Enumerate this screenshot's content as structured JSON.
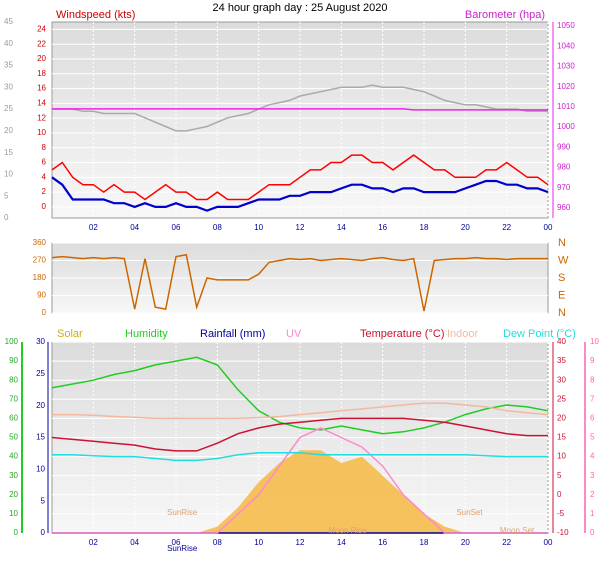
{
  "chart_data": [
    {
      "type": "line",
      "title": "24 hour graph day : 25 August 2020",
      "ylabel": "Windspeed (kts)",
      "y2label": "Barometer (hpa)",
      "xlim": [
        0,
        24
      ],
      "xticks": [
        {
          "value": 2,
          "label": "02"
        },
        {
          "value": 4,
          "label": "04"
        },
        {
          "value": 6,
          "label": "06"
        },
        {
          "value": 8,
          "label": "08"
        },
        10,
        12,
        14,
        16,
        18,
        20,
        22,
        {
          "value": 24,
          "label": "00"
        }
      ],
      "ylim": [
        -1.5,
        25
      ],
      "yticks": [
        0,
        2,
        4,
        6,
        8,
        10,
        12,
        14,
        16,
        18,
        20,
        22,
        24
      ],
      "y2lim": [
        955,
        1052
      ],
      "y2ticks": [
        960,
        970,
        980,
        990,
        1000,
        1010,
        1020,
        1030,
        1040,
        1050
      ],
      "y3lim": [
        0,
        45
      ],
      "y3ticks": [
        0,
        5,
        10,
        15,
        20,
        25,
        30,
        35,
        40,
        45
      ],
      "grid": true,
      "x": [
        0,
        0.5,
        1,
        1.5,
        2,
        2.5,
        3,
        3.5,
        4,
        4.5,
        5,
        5.5,
        6,
        6.5,
        7,
        7.5,
        8,
        8.5,
        9,
        9.5,
        10,
        10.5,
        11,
        11.5,
        12,
        12.5,
        13,
        13.5,
        14,
        14.5,
        15,
        15.5,
        16,
        16.5,
        17,
        17.5,
        18,
        18.5,
        19,
        19.5,
        20,
        20.5,
        21,
        21.5,
        22,
        22.5,
        23,
        23.5,
        24
      ],
      "series": [
        {
          "color": "#aaaaaa",
          "axis": "y3",
          "values": [
            25,
            25,
            25,
            24.5,
            24.5,
            24,
            24,
            24,
            24,
            23,
            22,
            21,
            20,
            20,
            20.5,
            21,
            22,
            23,
            23.5,
            24,
            25,
            26,
            26.5,
            27,
            28,
            28.5,
            29,
            29.5,
            30,
            30,
            30,
            30.5,
            30,
            30,
            30,
            29.5,
            29,
            28,
            27,
            26.5,
            26,
            26,
            25.5,
            25,
            25,
            25,
            24.5,
            24.5,
            24.5
          ]
        },
        {
          "color": "#ff0000",
          "axis": "y",
          "values": [
            5,
            6,
            4,
            3,
            3,
            2,
            3,
            2,
            2,
            1,
            2,
            3,
            2,
            2,
            1,
            1,
            2,
            1,
            1,
            1,
            2,
            3,
            3,
            3,
            4,
            5,
            5,
            6,
            6,
            7,
            7,
            6,
            6,
            5,
            6,
            7,
            6,
            5,
            5,
            4,
            4,
            4,
            5,
            5,
            6,
            5,
            4,
            4,
            3
          ]
        },
        {
          "color": "#0000cc",
          "axis": "y",
          "values": [
            4,
            3,
            1,
            1,
            1,
            1,
            0.5,
            0.5,
            0,
            0.5,
            0,
            0,
            0.5,
            0,
            0,
            -0.5,
            0,
            0,
            0,
            0.5,
            1,
            1,
            1,
            1.5,
            1.5,
            2,
            2,
            2,
            2.5,
            3,
            3,
            2.5,
            2.5,
            2,
            2.5,
            2.5,
            2,
            2,
            2,
            2,
            2.5,
            3,
            3.5,
            3.5,
            3,
            3,
            2.5,
            2.5,
            2
          ]
        },
        {
          "color": "#ee22ee",
          "axis": "y2",
          "values": [
            1009,
            1009,
            1009,
            1009,
            1009,
            1009,
            1009,
            1009,
            1009,
            1009,
            1009,
            1009,
            1009,
            1009,
            1009,
            1009,
            1009,
            1009,
            1009,
            1009,
            1009,
            1009,
            1009,
            1009,
            1009,
            1009,
            1009,
            1009,
            1009,
            1009,
            1009,
            1009,
            1009,
            1009,
            1009,
            1008.5,
            1008.5,
            1008.5,
            1008.5,
            1008.5,
            1008.5,
            1008.5,
            1008.5,
            1008.5,
            1008.5,
            1008.5,
            1008.5,
            1008.5,
            1008.5
          ]
        }
      ]
    },
    {
      "type": "line",
      "xlim": [
        0,
        24
      ],
      "ylim": [
        0,
        360
      ],
      "yticks": [
        0,
        90,
        180,
        270,
        360
      ],
      "y2lim": [
        0,
        360
      ],
      "y2ticks": [
        {
          "value": 0,
          "label": "N"
        },
        {
          "value": 90,
          "label": "E"
        },
        {
          "value": 180,
          "label": "S"
        },
        {
          "value": 270,
          "label": "W"
        },
        {
          "value": 360,
          "label": "N"
        }
      ],
      "grid": true,
      "x": [
        0,
        0.5,
        1,
        1.5,
        2,
        2.5,
        3,
        3.5,
        4,
        4.5,
        5,
        5.5,
        6,
        6.5,
        7,
        7.5,
        8,
        8.5,
        9,
        9.5,
        10,
        10.5,
        11,
        11.5,
        12,
        12.5,
        13,
        13.5,
        14,
        14.5,
        15,
        15.5,
        16,
        16.5,
        17,
        17.5,
        18,
        18.5,
        19,
        19.5,
        20,
        20.5,
        21,
        21.5,
        22,
        22.5,
        23,
        23.5,
        24
      ],
      "series": [
        {
          "color": "#cc6600",
          "axis": "y",
          "values": [
            285,
            290,
            285,
            280,
            285,
            280,
            285,
            280,
            20,
            280,
            30,
            20,
            290,
            300,
            30,
            180,
            170,
            170,
            170,
            170,
            200,
            260,
            270,
            280,
            275,
            280,
            270,
            275,
            280,
            275,
            270,
            280,
            285,
            275,
            270,
            280,
            10,
            270,
            275,
            280,
            280,
            285,
            280,
            280,
            275,
            280,
            280,
            280,
            280
          ]
        }
      ]
    },
    {
      "type": "line",
      "xlim": [
        0,
        24
      ],
      "xticks": [
        {
          "value": 2,
          "label": "02"
        },
        {
          "value": 4,
          "label": "04"
        },
        {
          "value": 6,
          "label": "06"
        },
        {
          "value": 8,
          "label": "08"
        },
        10,
        12,
        14,
        16,
        18,
        20,
        22,
        {
          "value": 24,
          "label": "00"
        }
      ],
      "ylim": [
        0,
        100
      ],
      "yticks": [
        0,
        10,
        20,
        30,
        40,
        50,
        60,
        70,
        80,
        90,
        100
      ],
      "y2lim": [
        0,
        30
      ],
      "y2ticks": [
        0,
        5,
        10,
        15,
        20,
        25,
        30
      ],
      "y3lim": [
        -10,
        40
      ],
      "y3ticks": [
        -10,
        -5,
        0,
        5,
        10,
        15,
        20,
        25,
        30,
        35,
        40
      ],
      "y4lim": [
        0,
        10
      ],
      "y4ticks": [
        0,
        1,
        2,
        3,
        4,
        5,
        6,
        7,
        8,
        9,
        10
      ],
      "grid": true,
      "x": [
        0,
        1,
        2,
        3,
        4,
        5,
        6,
        7,
        8,
        9,
        10,
        11,
        12,
        13,
        14,
        15,
        16,
        17,
        18,
        19,
        20,
        21,
        22,
        23,
        24
      ],
      "series": [
        {
          "name": "Solar",
          "color": "#f5b942",
          "axis": "y2",
          "fill": true,
          "values": [
            0,
            0,
            0,
            0,
            0,
            0,
            0,
            0,
            1,
            4,
            8,
            11,
            13,
            13,
            11,
            12,
            9,
            6,
            3,
            1,
            0,
            0,
            0,
            0,
            0
          ]
        },
        {
          "name": "Humidity",
          "color": "#22cc22",
          "axis": "y",
          "values": [
            76,
            78,
            80,
            83,
            85,
            88,
            90,
            92,
            88,
            75,
            64,
            58,
            55,
            54,
            56,
            54,
            52,
            53,
            55,
            58,
            62,
            65,
            67,
            66,
            64
          ]
        },
        {
          "name": "Rainfall (mm)",
          "color": "#000099",
          "axis": "y2",
          "values": [
            0,
            0,
            0,
            0,
            0,
            0,
            0,
            0,
            0,
            0,
            0,
            0,
            0,
            0,
            0,
            0,
            0,
            0,
            0,
            0,
            0,
            0,
            0,
            0,
            0
          ]
        },
        {
          "name": "UV",
          "color": "#ff88cc",
          "axis": "y4",
          "values": [
            0,
            0,
            0,
            0,
            0,
            0,
            0,
            0,
            0,
            1,
            2,
            3.5,
            5,
            5.5,
            5,
            4.5,
            3.5,
            2,
            1,
            0,
            0,
            0,
            0,
            0,
            0
          ]
        },
        {
          "name": "Temperature (°C)",
          "color": "#cc1133",
          "axis": "y3",
          "values": [
            15,
            14.5,
            14,
            13.5,
            13,
            12,
            11.5,
            11.5,
            13.5,
            16,
            17.5,
            18.5,
            19,
            19.5,
            20,
            20,
            20,
            20,
            19.5,
            19,
            18,
            17,
            16,
            15.5,
            15.5
          ]
        },
        {
          "name": "Indoor",
          "color": "#f4b8a0",
          "axis": "y3",
          "values": [
            21,
            21,
            20.8,
            20.5,
            20.3,
            20,
            20,
            20,
            20,
            20,
            20.2,
            20.5,
            21,
            21.5,
            22,
            22.5,
            23,
            23.5,
            24,
            24,
            23.5,
            23,
            22,
            21.5,
            21
          ]
        },
        {
          "name": "Dew Point (°C)",
          "color": "#22dddd",
          "axis": "y3",
          "values": [
            10.5,
            10.5,
            10.2,
            10,
            10,
            9.5,
            9,
            9,
            9.5,
            10.5,
            11,
            11,
            11,
            10.5,
            10.5,
            10.5,
            10.5,
            10.5,
            10.5,
            10.5,
            10.5,
            10.2,
            10,
            10,
            10
          ]
        }
      ],
      "annotations": [
        {
          "text": "SunRise",
          "x": 6.3
        },
        {
          "text": "Moon Rise",
          "x": 14.3
        },
        {
          "text": "SunSet",
          "x": 20.2
        },
        {
          "text": "Moon Set",
          "x": 22.5
        }
      ],
      "x_annotations": [
        {
          "text": "SunRise",
          "x": 6.3
        }
      ]
    }
  ]
}
